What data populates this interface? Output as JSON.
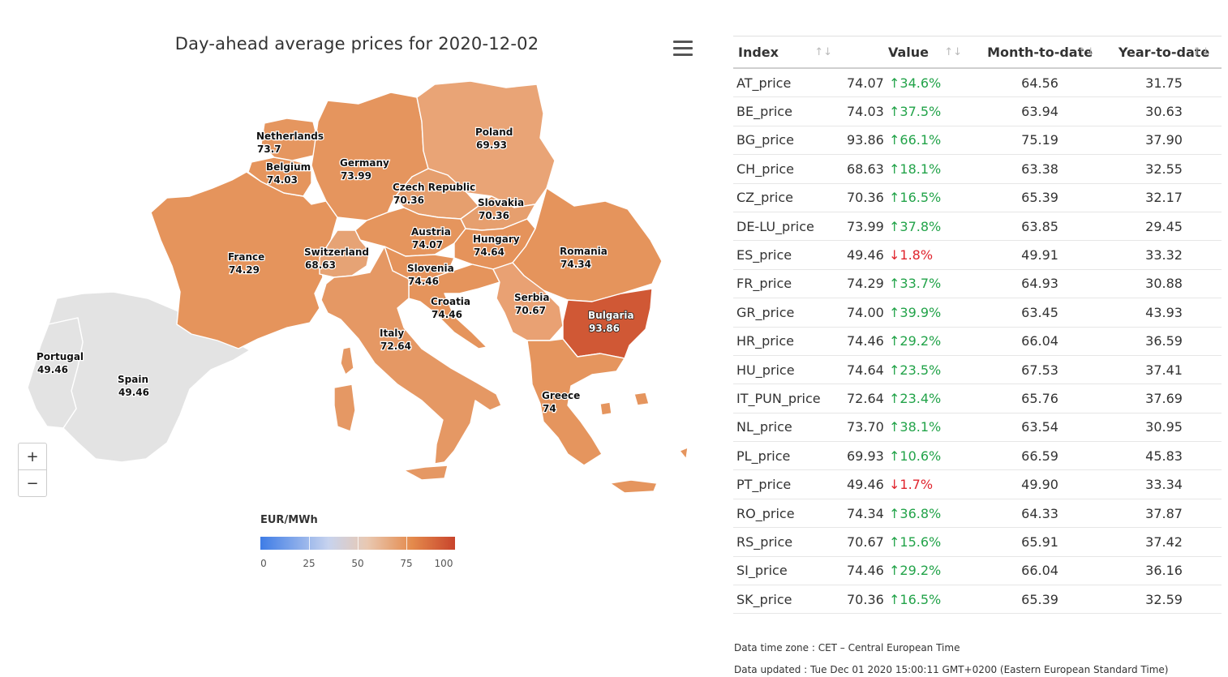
{
  "map": {
    "title": "Day-ahead average prices for 2020-12-02",
    "zoom_in_label": "+",
    "zoom_out_label": "−",
    "legend": {
      "title": "EUR/MWh",
      "ticks": [
        "0",
        "25",
        "50",
        "75",
        "100"
      ],
      "colors": {
        "low": "#3e7ce6",
        "mid": "#e9c8b1",
        "high": "#c8442c",
        "no_data": "#e3e3e3"
      }
    },
    "countries": [
      {
        "id": "netherlands",
        "name": "Netherlands",
        "value": "73.7"
      },
      {
        "id": "belgium",
        "name": "Belgium",
        "value": "74.03"
      },
      {
        "id": "germany",
        "name": "Germany",
        "value": "73.99"
      },
      {
        "id": "poland",
        "name": "Poland",
        "value": "69.93"
      },
      {
        "id": "czech",
        "name": "Czech Republic",
        "value": "70.36"
      },
      {
        "id": "slovakia",
        "name": "Slovakia",
        "value": "70.36"
      },
      {
        "id": "austria",
        "name": "Austria",
        "value": "74.07"
      },
      {
        "id": "hungary",
        "name": "Hungary",
        "value": "74.64"
      },
      {
        "id": "france",
        "name": "France",
        "value": "74.29"
      },
      {
        "id": "switzerland",
        "name": "Switzerland",
        "value": "68.63"
      },
      {
        "id": "slovenia",
        "name": "Slovenia",
        "value": "74.46"
      },
      {
        "id": "croatia",
        "name": "Croatia",
        "value": "74.46"
      },
      {
        "id": "romania",
        "name": "Romania",
        "value": "74.34"
      },
      {
        "id": "serbia",
        "name": "Serbia",
        "value": "70.67"
      },
      {
        "id": "bulgaria",
        "name": "Bulgaria",
        "value": "93.86"
      },
      {
        "id": "italy",
        "name": "Italy",
        "value": "72.64"
      },
      {
        "id": "greece",
        "name": "Greece",
        "value": "74"
      },
      {
        "id": "portugal",
        "name": "Portugal",
        "value": "49.46"
      },
      {
        "id": "spain",
        "name": "Spain",
        "value": "49.46"
      }
    ]
  },
  "table": {
    "headers": {
      "index": "Index",
      "value": "Value",
      "mtd": "Month-to-date",
      "ytd": "Year-to-date"
    },
    "sort_icon": "↑↓",
    "rows": [
      {
        "index": "AT_price",
        "value": "74.07",
        "change": "34.6%",
        "dir": "up",
        "mtd": "64.56",
        "ytd": "31.75"
      },
      {
        "index": "BE_price",
        "value": "74.03",
        "change": "37.5%",
        "dir": "up",
        "mtd": "63.94",
        "ytd": "30.63"
      },
      {
        "index": "BG_price",
        "value": "93.86",
        "change": "66.1%",
        "dir": "up",
        "mtd": "75.19",
        "ytd": "37.90"
      },
      {
        "index": "CH_price",
        "value": "68.63",
        "change": "18.1%",
        "dir": "up",
        "mtd": "63.38",
        "ytd": "32.55"
      },
      {
        "index": "CZ_price",
        "value": "70.36",
        "change": "16.5%",
        "dir": "up",
        "mtd": "65.39",
        "ytd": "32.17"
      },
      {
        "index": "DE-LU_price",
        "value": "73.99",
        "change": "37.8%",
        "dir": "up",
        "mtd": "63.85",
        "ytd": "29.45"
      },
      {
        "index": "ES_price",
        "value": "49.46",
        "change": "1.8%",
        "dir": "down",
        "mtd": "49.91",
        "ytd": "33.32"
      },
      {
        "index": "FR_price",
        "value": "74.29",
        "change": "33.7%",
        "dir": "up",
        "mtd": "64.93",
        "ytd": "30.88"
      },
      {
        "index": "GR_price",
        "value": "74.00",
        "change": "39.9%",
        "dir": "up",
        "mtd": "63.45",
        "ytd": "43.93"
      },
      {
        "index": "HR_price",
        "value": "74.46",
        "change": "29.2%",
        "dir": "up",
        "mtd": "66.04",
        "ytd": "36.59"
      },
      {
        "index": "HU_price",
        "value": "74.64",
        "change": "23.5%",
        "dir": "up",
        "mtd": "67.53",
        "ytd": "37.41"
      },
      {
        "index": "IT_PUN_price",
        "value": "72.64",
        "change": "23.4%",
        "dir": "up",
        "mtd": "65.76",
        "ytd": "37.69"
      },
      {
        "index": "NL_price",
        "value": "73.70",
        "change": "38.1%",
        "dir": "up",
        "mtd": "63.54",
        "ytd": "30.95"
      },
      {
        "index": "PL_price",
        "value": "69.93",
        "change": "10.6%",
        "dir": "up",
        "mtd": "66.59",
        "ytd": "45.83"
      },
      {
        "index": "PT_price",
        "value": "49.46",
        "change": "1.7%",
        "dir": "down",
        "mtd": "49.90",
        "ytd": "33.34"
      },
      {
        "index": "RO_price",
        "value": "74.34",
        "change": "36.8%",
        "dir": "up",
        "mtd": "64.33",
        "ytd": "37.87"
      },
      {
        "index": "RS_price",
        "value": "70.67",
        "change": "15.6%",
        "dir": "up",
        "mtd": "65.91",
        "ytd": "37.42"
      },
      {
        "index": "SI_price",
        "value": "74.46",
        "change": "29.2%",
        "dir": "up",
        "mtd": "66.04",
        "ytd": "36.16"
      },
      {
        "index": "SK_price",
        "value": "70.36",
        "change": "16.5%",
        "dir": "up",
        "mtd": "65.39",
        "ytd": "32.59"
      }
    ]
  },
  "footer": {
    "timezone": "Data time zone : CET – Central European Time",
    "updated": "Data updated : Tue Dec 01 2020 15:00:11 GMT+0200 (Eastern European Standard Time)"
  }
}
